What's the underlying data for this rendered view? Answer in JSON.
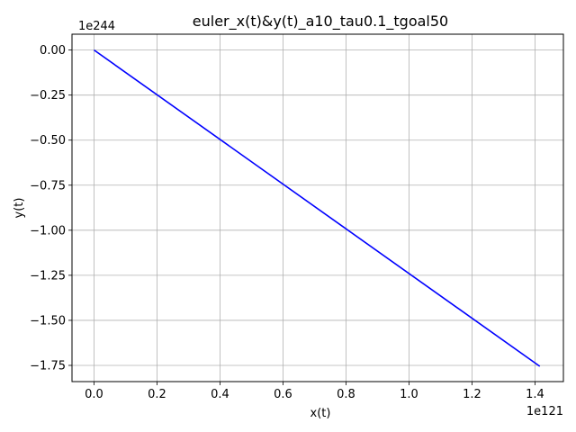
{
  "chart_data": {
    "type": "line",
    "title": "euler_x(t)&y(t)_a10_tau0.1_tgoal50",
    "xlabel": "x(t)",
    "ylabel": "y(t)",
    "x_offset_text": "1e121",
    "y_offset_text": "1e244",
    "x_ticks": [
      "0.0",
      "0.2",
      "0.4",
      "0.6",
      "0.8",
      "1.0",
      "1.2",
      "1.4"
    ],
    "y_ticks": [
      "0.00",
      "−0.25",
      "−0.50",
      "−0.75",
      "−1.00",
      "−1.25",
      "−1.50",
      "−1.75"
    ],
    "xlim": [
      -0.07,
      1.49
    ],
    "ylim": [
      -1.84,
      0.088
    ],
    "grid": true,
    "series": [
      {
        "color": "#0000ff",
        "x": [
          0.0,
          1.415
        ],
        "y": [
          0.0,
          -1.755
        ]
      }
    ]
  }
}
